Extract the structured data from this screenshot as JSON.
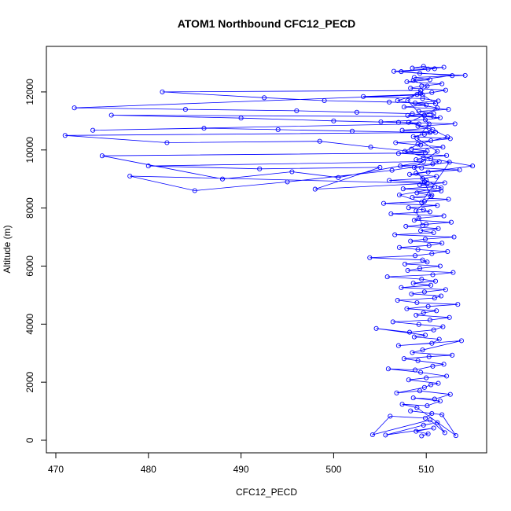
{
  "chart_data": {
    "type": "line",
    "title": "ATOM1 Northbound CFC12_PECD",
    "xlabel": "CFC12_PECD",
    "ylabel": "Altitude (m)",
    "xlim": [
      470,
      515.5
    ],
    "ylim": [
      0,
      13000
    ],
    "x_ticks": [
      470,
      480,
      490,
      500,
      510
    ],
    "y_ticks": [
      0,
      2000,
      4000,
      6000,
      8000,
      10000,
      12000
    ],
    "series_color": "#0000ff",
    "marker": "open-circle",
    "series": [
      {
        "x": [
          509.5,
          510.2,
          508.9,
          510.8,
          505.6,
          509.7,
          511.2,
          512.0,
          510.4,
          504.2,
          506.1,
          509.9,
          510.6,
          508.3,
          511.7,
          513.2,
          509.0,
          507.4,
          510.1,
          511.5,
          508.6,
          510.9,
          512.6,
          509.3,
          506.8,
          509.8,
          510.5,
          511.3,
          508.1,
          510.0,
          512.2,
          509.4,
          505.9,
          508.8,
          510.7,
          511.9,
          509.1,
          507.6,
          510.3,
          512.8,
          508.5,
          509.6,
          513.8,
          507.0,
          510.6,
          511.4,
          508.7,
          509.9,
          504.6,
          508.2,
          510.8,
          511.8,
          509.2,
          506.4,
          510.4,
          512.5,
          508.9,
          509.7,
          511.1,
          507.9,
          510.2,
          513.4,
          509.0,
          506.9,
          510.9,
          511.6,
          508.4,
          509.8,
          512.1,
          507.3,
          510.5,
          508.6,
          511.0,
          509.5,
          505.8,
          510.7,
          512.9,
          508.0,
          509.3,
          511.5,
          507.7,
          510.1,
          509.6,
          503.9,
          508.8,
          510.6,
          512.3,
          509.1,
          507.1,
          510.3,
          511.7,
          508.3,
          509.9,
          513.0,
          506.6,
          510.8,
          509.4,
          511.3,
          507.8,
          510.0,
          512.7,
          508.7,
          509.2,
          511.9,
          506.2,
          510.4,
          509.7,
          508.1,
          511.2,
          505.4,
          509.8,
          512.4,
          508.5,
          510.6,
          509.0,
          511.6,
          507.5,
          510.9,
          509.3,
          512.0,
          506.0,
          509.6,
          511.1,
          508.2,
          510.2,
          513.6,
          509.5,
          507.2,
          510.7,
          511.4,
          508.9,
          509.7,
          512.2,
          507.0,
          510.1,
          508.4,
          511.8,
          509.4,
          506.7,
          510.5,
          512.6,
          508.6,
          509.8,
          511.0,
          507.4,
          510.3,
          509.1,
          513.1,
          505.1,
          509.9,
          511.5,
          508.0,
          510.8,
          509.2,
          512.4,
          507.6,
          510.0,
          508.8,
          511.3,
          509.6,
          503.2,
          509.0,
          510.6,
          512.1,
          508.3,
          509.5,
          511.7,
          507.9,
          510.4,
          508.7,
          514.2,
          509.3,
          506.5,
          510.2,
          511.9,
          508.5,
          509.7,
          510.9,
          507.3,
          512.8,
          508.6,
          510.1,
          509.4,
          506.9,
          511.2,
          509.8,
          508.1,
          510.7,
          512.3,
          509.1,
          507.7,
          510.5,
          515.0,
          508.9,
          510.0,
          511.6,
          507.1,
          509.5,
          512.5,
          506.3,
          495.0,
          485.0,
          478.0,
          510.1,
          498.0,
          505.0,
          492.0,
          480.0,
          509.7,
          500.5,
          495.5,
          488.0,
          475.0,
          509.9,
          504.0,
          498.5,
          482.0,
          471.0,
          510.4,
          502.0,
          494.0,
          486.0,
          474.0,
          509.2,
          507.0,
          500.0,
          490.0,
          476.0,
          510.8,
          508.5,
          502.5,
          496.0,
          484.0,
          472.0,
          509.6,
          511.0,
          506.0,
          499.0,
          492.5,
          481.5,
          509.4,
          508.0,
          510.3,
          509.0,
          511.2,
          508.7,
          509.8,
          510.5,
          508.9,
          509.6
        ],
        "y": [
          150,
          220,
          310,
          420,
          180,
          520,
          610,
          260,
          700,
          190,
          830,
          760,
          920,
          1010,
          880,
          160,
          1120,
          1240,
          1190,
          1350,
          1460,
          1420,
          1580,
          1700,
          1630,
          1820,
          1910,
          1960,
          2080,
          2150,
          2210,
          2340,
          2460,
          2420,
          2550,
          2620,
          2740,
          2810,
          2880,
          2930,
          3020,
          3110,
          3430,
          3260,
          3340,
          3480,
          3560,
          3620,
          3850,
          3720,
          3800,
          3910,
          3990,
          4080,
          4140,
          4230,
          4310,
          4390,
          4460,
          4530,
          4610,
          4680,
          4740,
          4820,
          4900,
          4970,
          5040,
          5110,
          5190,
          5260,
          5340,
          5410,
          5480,
          5550,
          5630,
          5700,
          5780,
          5850,
          5920,
          6000,
          6070,
          6140,
          6210,
          6290,
          6360,
          6430,
          6500,
          6570,
          6640,
          6710,
          6790,
          6860,
          6930,
          7000,
          7080,
          7150,
          7220,
          7290,
          7370,
          7440,
          7510,
          7580,
          7650,
          7730,
          7800,
          7870,
          7940,
          8010,
          8090,
          8160,
          8230,
          8300,
          8370,
          8440,
          8520,
          8590,
          8660,
          8730,
          8800,
          8870,
          8950,
          9020,
          9090,
          9160,
          9240,
          9310,
          9380,
          9450,
          9520,
          9600,
          9670,
          9740,
          9810,
          9880,
          9960,
          10030,
          10100,
          10170,
          10250,
          10320,
          10390,
          10460,
          10540,
          10610,
          10680,
          10750,
          10820,
          10900,
          10970,
          11040,
          11110,
          11190,
          11260,
          11330,
          11400,
          11480,
          11550,
          11620,
          11690,
          11770,
          11840,
          11910,
          11980,
          12060,
          12130,
          12200,
          12280,
          12350,
          12420,
          12500,
          12570,
          12640,
          12710,
          12790,
          12850,
          12820,
          12880,
          12800,
          12700,
          12560,
          12400,
          12200,
          11950,
          11700,
          11450,
          11200,
          10950,
          10700,
          10450,
          10200,
          9950,
          9700,
          9450,
          9200,
          8950,
          8700,
          8450,
          8200,
          9580,
          9300,
          8900,
          8600,
          9100,
          8850,
          8650,
          9400,
          9350,
          9450,
          9600,
          9050,
          9250,
          9000,
          9800,
          9900,
          10100,
          10300,
          10250,
          10500,
          10600,
          10650,
          10700,
          10750,
          10680,
          10900,
          10950,
          11000,
          11100,
          11200,
          11150,
          11250,
          11300,
          11350,
          11400,
          11450,
          11900,
          11600,
          11650,
          11700,
          11800,
          12000,
          12050,
          11700,
          10900,
          10400,
          9950,
          9400,
          8900,
          8400,
          7900,
          7400
        ]
      }
    ]
  }
}
